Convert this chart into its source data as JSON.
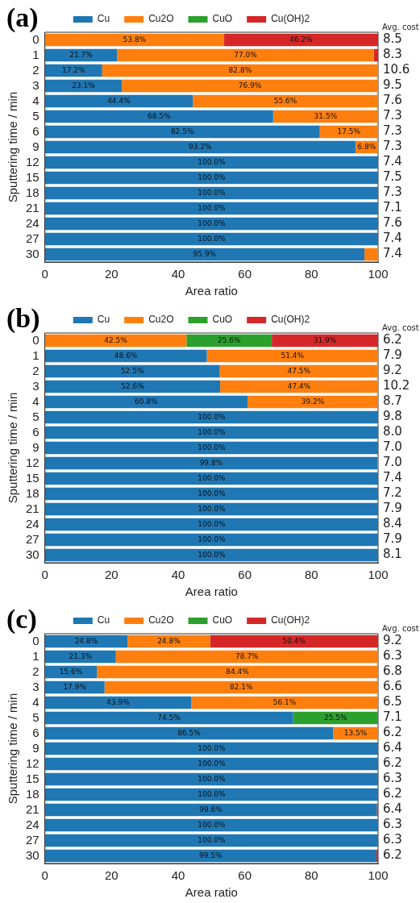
{
  "chart_data": [
    {
      "type": "bar",
      "orientation": "horizontal",
      "stacked": true,
      "title": "(a)",
      "xlabel": "Area ratio",
      "ylabel": "Sputtering time / min",
      "legend": "top",
      "xlim": [
        0,
        100
      ],
      "xticks": [
        0,
        20,
        40,
        60,
        80,
        100
      ],
      "categories": [
        "0",
        "1",
        "2",
        "3",
        "4",
        "5",
        "6",
        "9",
        "12",
        "15",
        "18",
        "21",
        "24",
        "27",
        "30"
      ],
      "series": [
        {
          "name": "Cu",
          "color": "#1f77b4",
          "values": [
            null,
            21.7,
            17.2,
            23.1,
            44.4,
            68.5,
            82.5,
            93.2,
            100,
            100,
            100,
            100,
            100,
            100,
            95.9
          ],
          "value_labels": [
            null,
            "21.7%",
            "17.2%",
            "23.1%",
            "44.4%",
            "68.5%",
            "82.5%",
            "93.2%",
            "100.0%",
            "100.0%",
            "100.0%",
            "100.0%",
            "100.0%",
            "100.0%",
            "95.9%"
          ]
        },
        {
          "name": "Cu2O",
          "color": "#ff7f0e",
          "values": [
            53.8,
            77.0,
            82.8,
            76.9,
            55.6,
            31.5,
            17.5,
            6.8,
            null,
            null,
            null,
            null,
            null,
            null,
            4.1
          ],
          "value_labels": [
            "53.8%",
            "77.0%",
            "82.8%",
            "76.9%",
            "55.6%",
            "31.5%",
            "17.5%",
            "6.8%",
            null,
            null,
            null,
            null,
            null,
            null,
            null
          ]
        },
        {
          "name": "CuO",
          "color": "#2ca02c",
          "values": [
            null,
            null,
            null,
            null,
            null,
            null,
            null,
            null,
            null,
            null,
            null,
            null,
            null,
            null,
            null
          ]
        },
        {
          "name": "Cu(OH)2",
          "color": "#d62728",
          "values": [
            46.2,
            1.3,
            null,
            null,
            null,
            null,
            null,
            null,
            null,
            null,
            null,
            null,
            null,
            null,
            null
          ],
          "value_labels": [
            "46.2%",
            null,
            null,
            null,
            null,
            null,
            null,
            null,
            null,
            null,
            null,
            null,
            null,
            null,
            null
          ]
        }
      ],
      "annotations": [
        "Avg. cost",
        "8.5",
        "8.3",
        "10.6",
        "9.5",
        "7.6",
        "7.3",
        "7.3",
        "7.3",
        "7.4",
        "7.5",
        "7.3",
        "7.1",
        "7.6",
        "7.4",
        "7.4"
      ]
    },
    {
      "type": "bar",
      "orientation": "horizontal",
      "stacked": true,
      "title": "(b)",
      "xlabel": "Area ratio",
      "ylabel": "Sputtering time / min",
      "legend": "top",
      "xlim": [
        0,
        100
      ],
      "xticks": [
        0,
        20,
        40,
        60,
        80,
        100
      ],
      "categories": [
        "0",
        "1",
        "2",
        "3",
        "4",
        "5",
        "6",
        "9",
        "12",
        "15",
        "18",
        "21",
        "24",
        "27",
        "30"
      ],
      "series": [
        {
          "name": "Cu",
          "color": "#1f77b4",
          "values": [
            null,
            48.6,
            52.5,
            52.6,
            60.8,
            100,
            100,
            100,
            99.8,
            100,
            100,
            100,
            100,
            100,
            100
          ],
          "value_labels": [
            null,
            "48.6%",
            "52.5%",
            "52.6%",
            "60.8%",
            "100.0%",
            "100.0%",
            "100.0%",
            "99.8%",
            "100.0%",
            "100.0%",
            "100.0%",
            "100.0%",
            "100.0%",
            "100.0%"
          ]
        },
        {
          "name": "Cu2O",
          "color": "#ff7f0e",
          "values": [
            42.5,
            51.4,
            47.5,
            47.4,
            39.2,
            null,
            null,
            null,
            null,
            null,
            null,
            null,
            null,
            null,
            null
          ],
          "value_labels": [
            "42.5%",
            "51.4%",
            "47.5%",
            "47.4%",
            "39.2%",
            null,
            null,
            null,
            null,
            null,
            null,
            null,
            null,
            null,
            null
          ]
        },
        {
          "name": "CuO",
          "color": "#2ca02c",
          "values": [
            25.6,
            null,
            null,
            null,
            null,
            null,
            null,
            null,
            null,
            null,
            null,
            null,
            null,
            null,
            null
          ],
          "value_labels": [
            "25.6%",
            null,
            null,
            null,
            null,
            null,
            null,
            null,
            null,
            null,
            null,
            null,
            null,
            null,
            null
          ]
        },
        {
          "name": "Cu(OH)2",
          "color": "#d62728",
          "values": [
            31.9,
            null,
            null,
            null,
            null,
            null,
            null,
            null,
            null,
            null,
            null,
            null,
            null,
            null,
            null
          ],
          "value_labels": [
            "31.9%",
            null,
            null,
            null,
            null,
            null,
            null,
            null,
            null,
            null,
            null,
            null,
            null,
            null,
            null
          ]
        }
      ],
      "annotations": [
        "Avg. cost",
        "6.2",
        "7.9",
        "9.2",
        "10.2",
        "8.7",
        "9.8",
        "8.0",
        "7.0",
        "7.0",
        "7.4",
        "7.2",
        "7.9",
        "8.4",
        "7.9",
        "8.1"
      ]
    },
    {
      "type": "bar",
      "orientation": "horizontal",
      "stacked": true,
      "title": "(c)",
      "xlabel": "Area ratio",
      "ylabel": "Sputtering time / min",
      "legend": "top",
      "xlim": [
        0,
        100
      ],
      "xticks": [
        0,
        20,
        40,
        60,
        80,
        100
      ],
      "categories": [
        "0",
        "1",
        "2",
        "3",
        "4",
        "5",
        "6",
        "9",
        "12",
        "15",
        "18",
        "21",
        "24",
        "27",
        "30"
      ],
      "series": [
        {
          "name": "Cu",
          "color": "#1f77b4",
          "values": [
            24.8,
            21.3,
            15.6,
            17.9,
            43.9,
            74.5,
            86.5,
            100,
            100,
            100,
            100,
            99.6,
            100,
            100,
            99.5
          ],
          "value_labels": [
            "24.8%",
            "21.3%",
            "15.6%",
            "17.9%",
            "43.9%",
            "74.5%",
            "86.5%",
            "100.0%",
            "100.0%",
            "100.0%",
            "100.0%",
            "99.6%",
            "100.0%",
            "100.0%",
            "99.5%"
          ]
        },
        {
          "name": "Cu2O",
          "color": "#ff7f0e",
          "values": [
            24.8,
            78.7,
            84.4,
            82.1,
            56.1,
            null,
            13.5,
            null,
            null,
            null,
            null,
            null,
            null,
            null,
            null
          ],
          "value_labels": [
            "24.8%",
            "78.7%",
            "84.4%",
            "82.1%",
            "56.1%",
            null,
            "13.5%",
            null,
            null,
            null,
            null,
            null,
            null,
            null,
            null
          ]
        },
        {
          "name": "CuO",
          "color": "#2ca02c",
          "values": [
            null,
            null,
            null,
            null,
            null,
            25.5,
            null,
            null,
            null,
            null,
            null,
            null,
            null,
            null,
            null
          ],
          "value_labels": [
            null,
            null,
            null,
            null,
            null,
            "25.5%",
            null,
            null,
            null,
            null,
            null,
            null,
            null,
            null,
            null
          ]
        },
        {
          "name": "Cu(OH)2",
          "color": "#d62728",
          "values": [
            50.4,
            null,
            null,
            null,
            null,
            null,
            null,
            null,
            null,
            null,
            null,
            0.4,
            null,
            null,
            0.5
          ],
          "value_labels": [
            "50.4%",
            null,
            null,
            null,
            null,
            null,
            null,
            null,
            null,
            null,
            null,
            null,
            null,
            null,
            null
          ]
        }
      ],
      "annotations": [
        "Avg. cost",
        "9.2",
        "6.3",
        "6.8",
        "6.6",
        "6.5",
        "7.1",
        "6.2",
        "6.4",
        "6.2",
        "6.3",
        "6.2",
        "6.4",
        "6.3",
        "6.3",
        "6.2"
      ]
    }
  ]
}
